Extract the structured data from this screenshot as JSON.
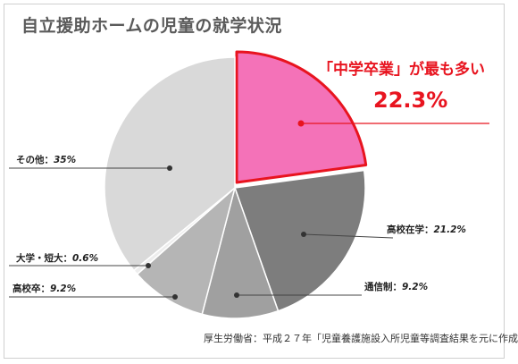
{
  "title": "自立援助ホームの児童の就学状況",
  "callout": {
    "line1": "「中学卒業」が最も多い",
    "line2": "22.3%"
  },
  "source": "厚生労働省：平成２７年「児童養護施設入所児童等調査結果を元に作成",
  "colors": {
    "highlight_fill": "#f472b8",
    "highlight_stroke": "#e8141f",
    "callout_text": "#e8141f"
  },
  "chart_data": {
    "type": "pie",
    "title": "自立援助ホームの児童の就学状況",
    "slices": [
      {
        "label": "中学卒業",
        "value": 22.3,
        "value_text": "22.3%",
        "color": "#f472b8",
        "highlight": true
      },
      {
        "label": "高校在学",
        "value": 21.2,
        "value_text": "21.2%",
        "color": "#7d7d7d"
      },
      {
        "label": "通信制",
        "value": 9.2,
        "value_text": "9.2%",
        "color": "#a0a0a0"
      },
      {
        "label": "高校卒",
        "value": 9.2,
        "value_text": "9.2%",
        "color": "#b5b5b5"
      },
      {
        "label": "大学・短大",
        "value": 0.6,
        "value_text": "0.6%",
        "color": "#ededed"
      },
      {
        "label": "その他",
        "value": 35,
        "value_text": "35%",
        "color": "#d9d9d9"
      }
    ]
  }
}
